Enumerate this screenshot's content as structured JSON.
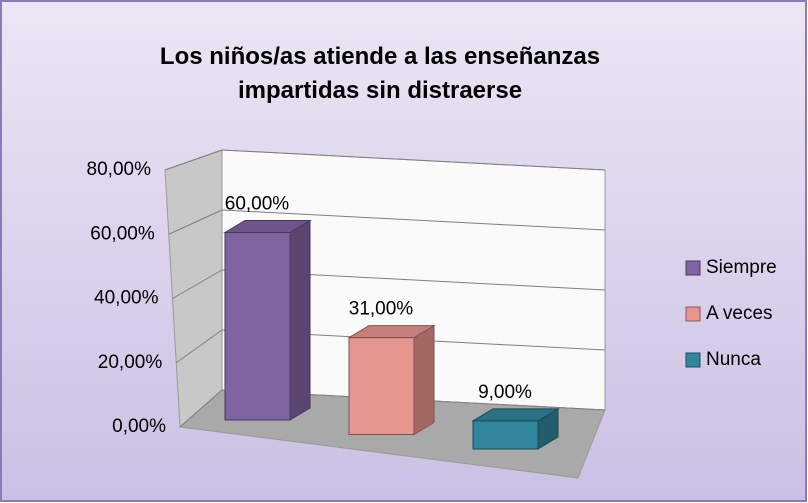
{
  "chart_data": {
    "type": "bar3d",
    "title": "Los niños/as atiende a las enseñanzas impartidas sin distraerse",
    "categories": [
      null
    ],
    "series": [
      {
        "name": "Siempre",
        "color": "#8064a2",
        "values": [
          60
        ],
        "value_labels": [
          "60,00%"
        ]
      },
      {
        "name": "A veces",
        "color": "#e6958f",
        "values": [
          31
        ],
        "value_labels": [
          "31,00%"
        ]
      },
      {
        "name": "Nunca",
        "color": "#31859c",
        "values": [
          9
        ],
        "value_labels": [
          "9,00%"
        ]
      }
    ],
    "ylim": [
      0,
      80
    ],
    "yticks": [
      {
        "value": 0,
        "label": "0,00%"
      },
      {
        "value": 20,
        "label": "20,00%"
      },
      {
        "value": 40,
        "label": "40,00%"
      },
      {
        "value": 60,
        "label": "60,00%"
      },
      {
        "value": 80,
        "label": "80,00%"
      }
    ],
    "grid": true,
    "legend": "right"
  }
}
